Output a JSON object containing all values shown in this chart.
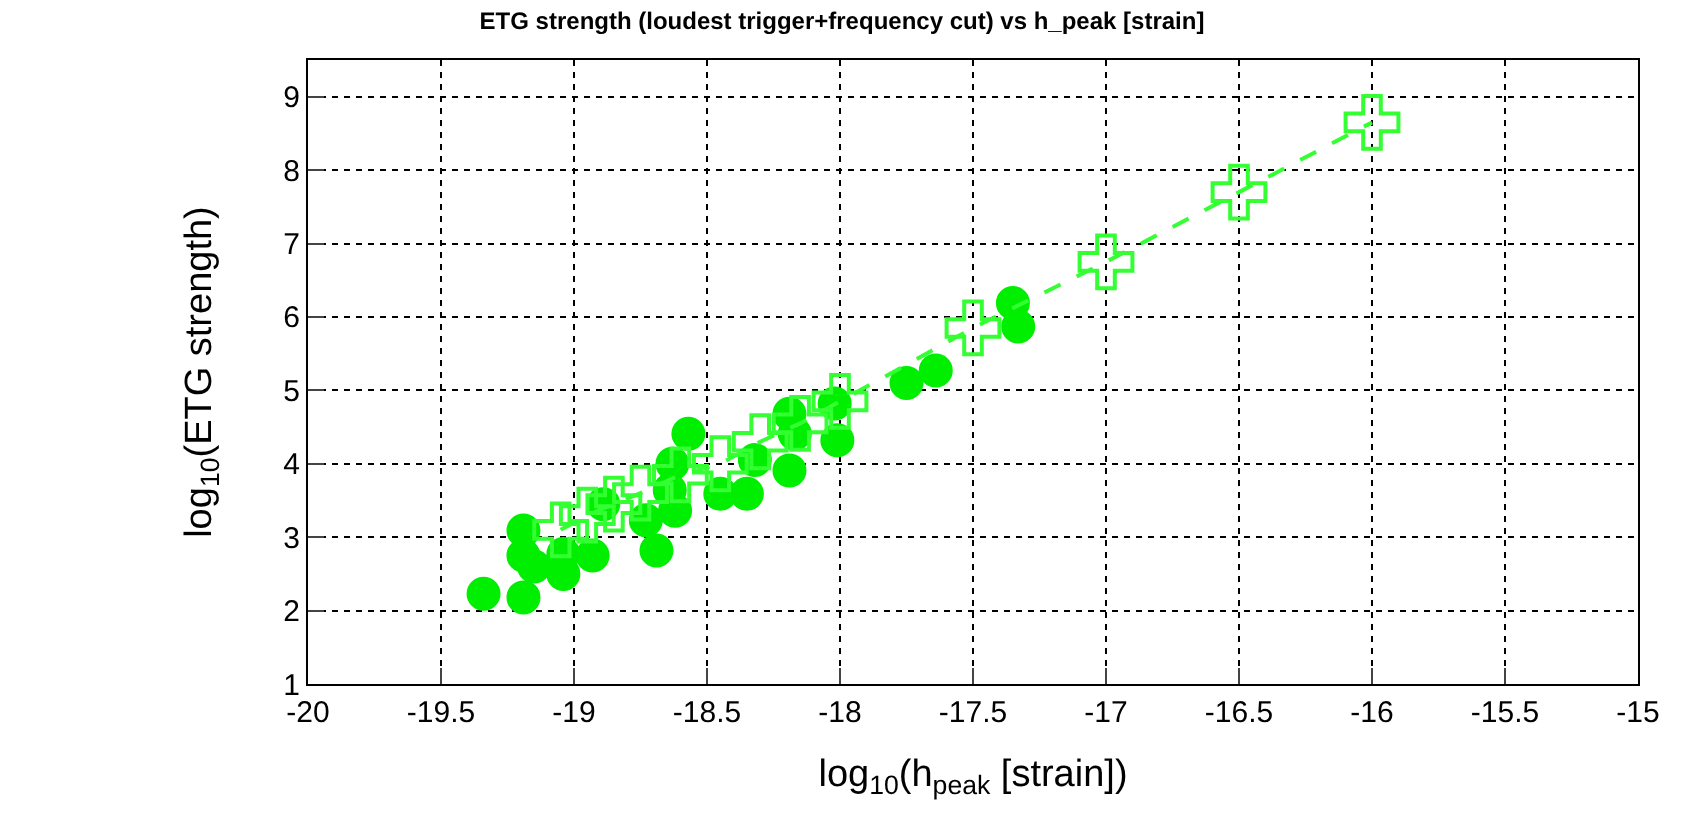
{
  "chart_data": {
    "type": "scatter",
    "title": "ETG strength (loudest trigger+frequency cut) vs h_peak [strain]",
    "xlabel": "log$_{10}$(h$_{peak}$ [strain])",
    "ylabel": "log$_{10}$(ETG strength)",
    "xlim": [
      -20,
      -15
    ],
    "xticks": [
      -20,
      -19.5,
      -19,
      -18.5,
      -18,
      -17.5,
      -17,
      -16.5,
      -16,
      -15.5,
      -15
    ],
    "ylim": [
      1,
      9.5
    ],
    "yticks": [
      1,
      2,
      3,
      4,
      5,
      6,
      7,
      8,
      9
    ],
    "grid": true,
    "series": [
      {
        "marker": "circle",
        "color": "#00ee00",
        "x": [
          -19.34,
          -19.19,
          -19.19,
          -19.19,
          -19.15,
          -19.04,
          -19.04,
          -18.93,
          -18.89,
          -18.73,
          -18.69,
          -18.63,
          -18.57,
          -18.64,
          -18.62,
          -18.45,
          -18.35,
          -18.32,
          -18.19,
          -18.19,
          -18.17,
          -18.02,
          -18.01,
          -17.75,
          -17.64,
          -17.35,
          -17.33
        ],
        "values": [
          2.23,
          2.18,
          3.09,
          2.75,
          2.6,
          2.77,
          2.5,
          2.75,
          3.45,
          3.23,
          2.82,
          4.0,
          4.41,
          3.64,
          3.36,
          3.59,
          3.59,
          4.05,
          3.91,
          4.68,
          4.41,
          4.82,
          4.32,
          5.1,
          5.27,
          6.19,
          5.87
        ]
      },
      {
        "type": "line",
        "marker": "cross",
        "line_style": "dashed",
        "color": "#33ff33",
        "x": [
          -19.05,
          -18.95,
          -18.85,
          -18.75,
          -18.6,
          -18.45,
          -18.3,
          -18.15,
          -18.0,
          -17.5,
          -17.0,
          -16.5,
          -16.0
        ],
        "values": [
          3.1,
          3.3,
          3.45,
          3.6,
          3.85,
          4.0,
          4.3,
          4.55,
          4.85,
          5.85,
          6.75,
          7.7,
          8.65
        ]
      }
    ]
  }
}
